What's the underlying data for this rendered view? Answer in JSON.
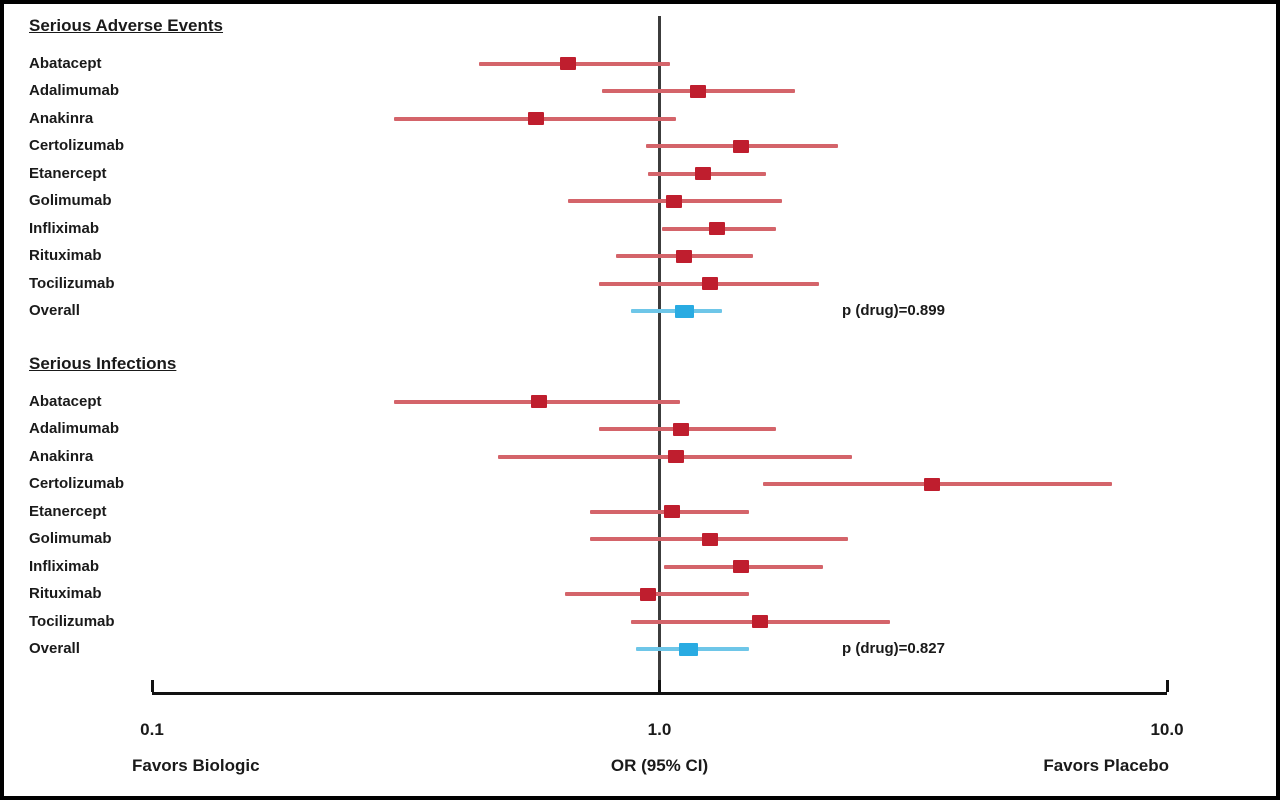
{
  "figure": {
    "background": "#ffffff",
    "border_color": "#000000"
  },
  "chart_data": {
    "type": "forest",
    "title": "",
    "x_axis": {
      "scale": "log",
      "min": 0.1,
      "max": 10.0,
      "ticks": [
        0.1,
        1.0,
        10.0
      ],
      "tick_labels": [
        "0.1",
        "1.0",
        "10.0"
      ],
      "reference_line": 1.0,
      "label": "OR (95% CI)",
      "left_label": "Favors Biologic",
      "right_label": "Favors Placebo"
    },
    "colors": {
      "drug_marker": "#bf1e2e",
      "drug_ci": "#d4646a",
      "overall_marker": "#29abe2",
      "overall_ci": "#6ec6e8",
      "reference_line": "#3c3c3c",
      "axis": "#111111",
      "text": "#1a1a1a"
    },
    "sections": [
      {
        "title": "Serious Adverse Events",
        "p_label": "p (drug)=0.899",
        "rows": [
          {
            "label": "Abatacept",
            "or": 0.66,
            "lo": 0.44,
            "hi": 1.05,
            "overall": false
          },
          {
            "label": "Adalimumab",
            "or": 1.19,
            "lo": 0.77,
            "hi": 1.85,
            "overall": false
          },
          {
            "label": "Anakinra",
            "or": 0.57,
            "lo": 0.3,
            "hi": 1.08,
            "overall": false
          },
          {
            "label": "Certolizumab",
            "or": 1.45,
            "lo": 0.94,
            "hi": 2.25,
            "overall": false
          },
          {
            "label": "Etanercept",
            "or": 1.22,
            "lo": 0.95,
            "hi": 1.62,
            "overall": false
          },
          {
            "label": "Golimumab",
            "or": 1.07,
            "lo": 0.66,
            "hi": 1.74,
            "overall": false
          },
          {
            "label": "Infliximab",
            "or": 1.3,
            "lo": 1.01,
            "hi": 1.7,
            "overall": false
          },
          {
            "label": "Rituximab",
            "or": 1.12,
            "lo": 0.82,
            "hi": 1.53,
            "overall": false
          },
          {
            "label": "Tocilizumab",
            "or": 1.26,
            "lo": 0.76,
            "hi": 2.06,
            "overall": false
          },
          {
            "label": "Overall",
            "or": 1.12,
            "lo": 0.88,
            "hi": 1.33,
            "overall": true
          }
        ]
      },
      {
        "title": "Serious Infections",
        "p_label": "p (drug)=0.827",
        "rows": [
          {
            "label": "Abatacept",
            "or": 0.58,
            "lo": 0.3,
            "hi": 1.1,
            "overall": false
          },
          {
            "label": "Adalimumab",
            "or": 1.1,
            "lo": 0.76,
            "hi": 1.7,
            "overall": false
          },
          {
            "label": "Anakinra",
            "or": 1.08,
            "lo": 0.48,
            "hi": 2.4,
            "overall": false
          },
          {
            "label": "Certolizumab",
            "or": 3.45,
            "lo": 1.6,
            "hi": 7.8,
            "overall": false
          },
          {
            "label": "Etanercept",
            "or": 1.06,
            "lo": 0.73,
            "hi": 1.5,
            "overall": false
          },
          {
            "label": "Golimumab",
            "or": 1.26,
            "lo": 0.73,
            "hi": 2.35,
            "overall": false
          },
          {
            "label": "Infliximab",
            "or": 1.45,
            "lo": 1.02,
            "hi": 2.1,
            "overall": false
          },
          {
            "label": "Rituximab",
            "or": 0.95,
            "lo": 0.65,
            "hi": 1.5,
            "overall": false
          },
          {
            "label": "Tocilizumab",
            "or": 1.58,
            "lo": 0.88,
            "hi": 2.85,
            "overall": false
          },
          {
            "label": "Overall",
            "or": 1.14,
            "lo": 0.9,
            "hi": 1.5,
            "overall": true
          }
        ]
      }
    ]
  }
}
